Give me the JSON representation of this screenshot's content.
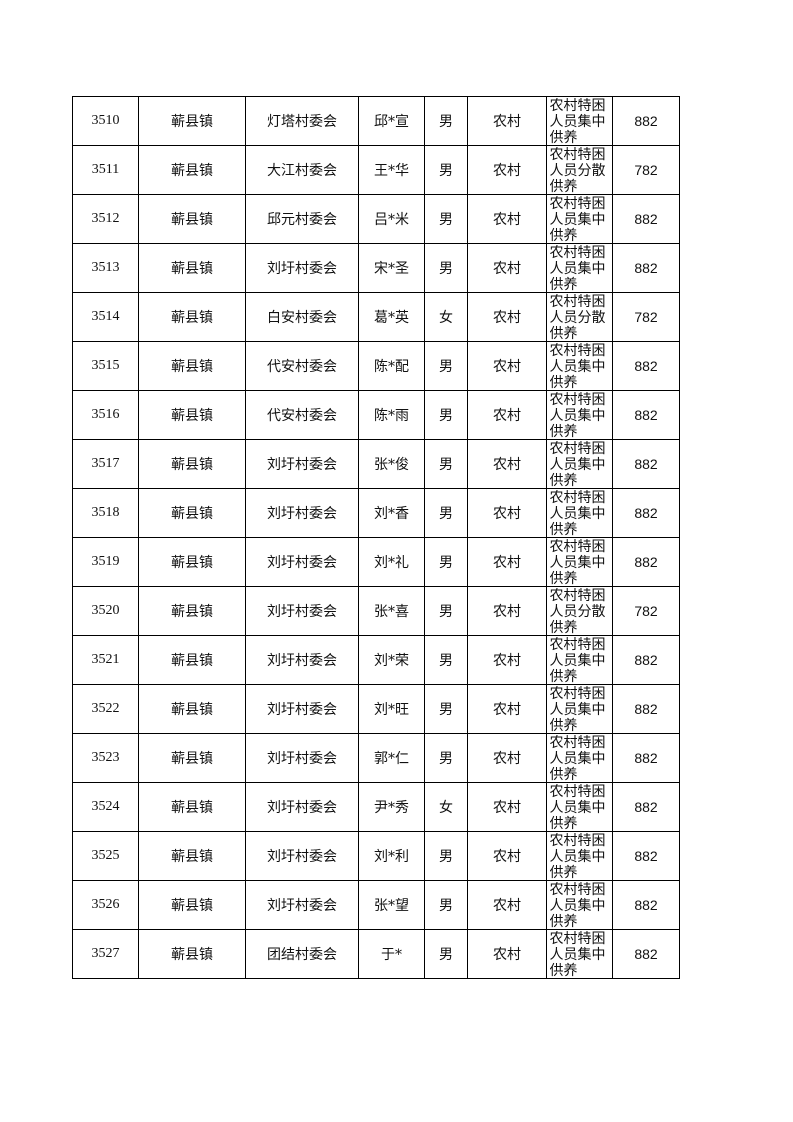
{
  "table": {
    "rows": [
      [
        "3510",
        "蕲县镇",
        "灯塔村委会",
        "邱*宣",
        "男",
        "农村",
        "农村特困人员集中供养",
        "882"
      ],
      [
        "3511",
        "蕲县镇",
        "大江村委会",
        "王*华",
        "男",
        "农村",
        "农村特困人员分散供养",
        "782"
      ],
      [
        "3512",
        "蕲县镇",
        "邱元村委会",
        "吕*米",
        "男",
        "农村",
        "农村特困人员集中供养",
        "882"
      ],
      [
        "3513",
        "蕲县镇",
        "刘圩村委会",
        "宋*圣",
        "男",
        "农村",
        "农村特困人员集中供养",
        "882"
      ],
      [
        "3514",
        "蕲县镇",
        "白安村委会",
        "葛*英",
        "女",
        "农村",
        "农村特困人员分散供养",
        "782"
      ],
      [
        "3515",
        "蕲县镇",
        "代安村委会",
        "陈*配",
        "男",
        "农村",
        "农村特困人员集中供养",
        "882"
      ],
      [
        "3516",
        "蕲县镇",
        "代安村委会",
        "陈*雨",
        "男",
        "农村",
        "农村特困人员集中供养",
        "882"
      ],
      [
        "3517",
        "蕲县镇",
        "刘圩村委会",
        "张*俊",
        "男",
        "农村",
        "农村特困人员集中供养",
        "882"
      ],
      [
        "3518",
        "蕲县镇",
        "刘圩村委会",
        "刘*香",
        "男",
        "农村",
        "农村特困人员集中供养",
        "882"
      ],
      [
        "3519",
        "蕲县镇",
        "刘圩村委会",
        "刘*礼",
        "男",
        "农村",
        "农村特困人员集中供养",
        "882"
      ],
      [
        "3520",
        "蕲县镇",
        "刘圩村委会",
        "张*喜",
        "男",
        "农村",
        "农村特困人员分散供养",
        "782"
      ],
      [
        "3521",
        "蕲县镇",
        "刘圩村委会",
        "刘*荣",
        "男",
        "农村",
        "农村特困人员集中供养",
        "882"
      ],
      [
        "3522",
        "蕲县镇",
        "刘圩村委会",
        "刘*旺",
        "男",
        "农村",
        "农村特困人员集中供养",
        "882"
      ],
      [
        "3523",
        "蕲县镇",
        "刘圩村委会",
        "郭*仁",
        "男",
        "农村",
        "农村特困人员集中供养",
        "882"
      ],
      [
        "3524",
        "蕲县镇",
        "刘圩村委会",
        "尹*秀",
        "女",
        "农村",
        "农村特困人员集中供养",
        "882"
      ],
      [
        "3525",
        "蕲县镇",
        "刘圩村委会",
        "刘*利",
        "男",
        "农村",
        "农村特困人员集中供养",
        "882"
      ],
      [
        "3526",
        "蕲县镇",
        "刘圩村委会",
        "张*望",
        "男",
        "农村",
        "农村特困人员集中供养",
        "882"
      ],
      [
        "3527",
        "蕲县镇",
        "团结村委会",
        "于*",
        "男",
        "农村",
        "农村特困人员集中供养",
        "882"
      ]
    ]
  }
}
